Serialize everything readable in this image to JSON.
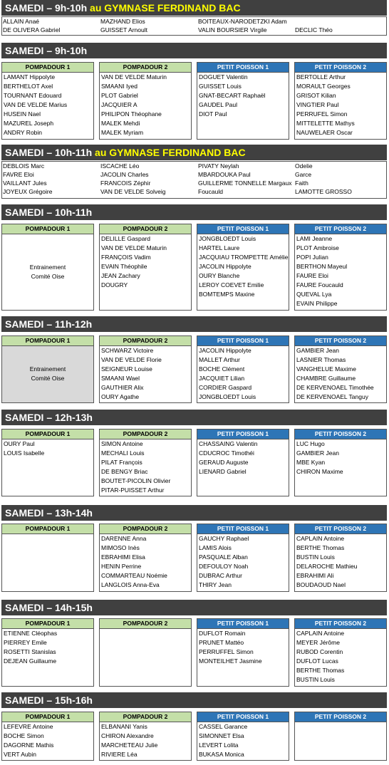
{
  "col_headers": [
    "POMPADOUR 1",
    "POMPADOUR 2",
    "PETIT POISSON 1",
    "PETIT POISSON 2"
  ],
  "list_blocks": [
    {
      "title": "SAMEDI – 9h-10h",
      "location": "au GYMNASE FERDINAND BAC",
      "columns": [
        [
          "ALLAIN Anaé",
          "DE OLIVERA Gabriel"
        ],
        [
          "MAZHAND Elios",
          "GUISSET Arnoult"
        ],
        [
          "BOITEAUX-NARODETZKI Adam",
          "VALIN BOURSIER Virgile"
        ],
        [
          "",
          "DECLIC Théo"
        ]
      ]
    },
    {
      "title": "SAMEDI – 10h-11h",
      "location": "au GYMNASE FERDINAND BAC",
      "columns": [
        [
          "DEBLOIS Marc",
          "FAVRE Eloi",
          "VAILLANT Jules",
          "JOYEUX Grégoire"
        ],
        [
          "ISCACHE Léo",
          "JACOLIN Charles",
          "FRANCOIS Zéphir",
          "VAN DE VELDE Solveig"
        ],
        [
          "PIVATY Neylah",
          "MBARDOUKA Paul",
          "GUILLERME TONNELLE Margaux",
          "Foucauld"
        ],
        [
          "Odelie",
          "Garce",
          "Faith",
          "LAMOTTE      GROSSO"
        ]
      ]
    }
  ],
  "sessions": [
    {
      "title": "SAMEDI – 9h-10h",
      "columns": [
        {
          "names": [
            "LAMANT Hippolyte",
            "BERTHELOT Axel",
            "TOURNANT Edouard",
            "VAN DE VELDE Marius",
            "HUSEIN Nael",
            "MAZUREL Joseph",
            "ANDRY Robin"
          ]
        },
        {
          "names": [
            "VAN DE VELDE Maturin",
            "SMAANI Iyed",
            "PLOT Gabriel",
            "JACQUIER A",
            "PHILIPON Théophane",
            "MALEK Mehdi",
            "MALEK Myriam"
          ]
        },
        {
          "names": [
            "DOGUET Valentin",
            "GUISSET Louis",
            "GNAT-BECART Raphaël",
            "GAUDEL Paul",
            "DIOT Paul"
          ]
        },
        {
          "names": [
            "BERTOLLE Arthur",
            "MORAULT Georges",
            "GRISOT Kilian",
            "VINGTIER Paul",
            "PERRUFEL Simon",
            "MITTELETTE Mathys",
            "NAUWELAER Oscar"
          ]
        }
      ]
    },
    {
      "title": "SAMEDI – 10h-11h",
      "columns": [
        {
          "names": [],
          "note": [
            "Entrainement",
            "Comité Oise"
          ]
        },
        {
          "names": [
            "DELILLE Gaspard",
            "VAN DE VELDE Maturin",
            "FRANÇOIS Vadim",
            "EVAIN Théophile",
            "JEAN Zachary",
            "DOUGRY"
          ]
        },
        {
          "names": [
            "JONGBLOEDT Louis",
            "HARTEL Laure",
            "JACQUIAU TROMPETTE Amélie",
            "JACOLIN Hippolyte",
            "OURY Blanche",
            "LEROY COEVET Emilie",
            "BOMTEMPS Maxine"
          ]
        },
        {
          "names": [
            "LAMI Jeanne",
            "PLOT Ambroise",
            "POPI Julian",
            "BERTHON Mayeul",
            "FAURE Eloi",
            "FAURE Foucauld",
            "QUEVAL Lya",
            "EVAIN Philippe"
          ]
        }
      ]
    },
    {
      "title": "SAMEDI – 11h-12h",
      "columns": [
        {
          "names": [],
          "note": [
            "Entrainement",
            "Comité Oise"
          ],
          "gray": true
        },
        {
          "names": [
            "SCHWARZ Victoire",
            "VAN DE VELDE Florie",
            "SEIGNEUR Louise",
            "SMAANI Wael",
            "GAUTHIER Alix",
            "OURY Agathe"
          ]
        },
        {
          "names": [
            "JACOLIN Hippolyte",
            "MALLET Arthur",
            "BOCHE Clément",
            "JACQUIET Lilian",
            "CORDIER Gaspard",
            "JONGBLOEDT Louis"
          ]
        },
        {
          "names": [
            "GAMBIER Jean",
            "LASNIER Thomas",
            "VANGHELUE Maxime",
            "CHAMBRE Guillaume",
            "DE KERVENOAEL Timothée",
            "DE KERVENOAEL Tanguy"
          ]
        }
      ]
    },
    {
      "title": "SAMEDI – 12h-13h",
      "columns": [
        {
          "names": [
            "OURY Paul",
            "LOUIS Isabelle"
          ]
        },
        {
          "names": [
            "SIMON Antoine",
            "MECHALI Louis",
            "PILAT François",
            "DE BENGY Briac",
            "BOUTET-PICOLIN Olivier",
            "PITAR-PUISSET Arthur"
          ]
        },
        {
          "names": [
            "CHASSAING Valentin",
            "CDUCROC Timothéi",
            "GERAUD Auguste",
            "LIENARD Gabriel"
          ]
        },
        {
          "names": [
            "LUC Hugo",
            "GAMBIER Jean",
            "MBE Kyan",
            "CHIRON Maxime"
          ]
        }
      ]
    },
    {
      "title": "SAMEDI – 13h-14h",
      "columns": [
        {
          "names": []
        },
        {
          "names": [
            "DARENNE Anna",
            "MIMOSO Inès",
            "EBRAHIMI Elisa",
            "HENIN Perrine",
            "COMMARTEAU Noémie",
            "LANGLOIS Anna-Eva"
          ]
        },
        {
          "names": [
            "GAUCHY Raphael",
            "LAMIS Alois",
            "PASQUALE Alban",
            "DEFOULOY Noah",
            "DUBRAC Arthur",
            "THIRY Jean"
          ]
        },
        {
          "names": [
            "CAPLAIN Antoine",
            "BERTHE Thomas",
            "BUSTIN Louis",
            "DELAROCHE Mathieu",
            "EBRAHIMI Ali",
            "BOUDAOUD Nael"
          ]
        }
      ]
    },
    {
      "title": "SAMEDI – 14h-15h",
      "columns": [
        {
          "names": [
            "ETIENNE Cléophas",
            "PIERREY Emile",
            "ROSETTI Stanislas",
            "DEJEAN Guillaume"
          ]
        },
        {
          "names": []
        },
        {
          "names": [
            "DUFLOT Romain",
            "PRUNET Mattéo",
            "PERRUFFEL Simon",
            "MONTEILHET Jasmine"
          ]
        },
        {
          "names": [
            "CAPLAIN Antoine",
            "MEYER Jérôme",
            "RUBOD Corentin",
            "DUFLOT Lucas",
            "BERTHE Thomas",
            "BUSTIN Louis"
          ]
        }
      ]
    },
    {
      "title": "SAMEDI – 15h-16h",
      "columns": [
        {
          "names": [
            "LEFEVRE Antoine",
            "BOCHE Simon",
            "DAGORNE Mathis",
            "VERT Aubin"
          ]
        },
        {
          "names": [
            "ELBANANI Yanis",
            "CHIRON Alexandre",
            "MARCHETEAU Julie",
            "RIVIERE Léa"
          ]
        },
        {
          "names": [
            "CASSEL Garance",
            "SIMONNET Elsa",
            "LEVERT Lolita",
            "BUKASA Monica"
          ]
        },
        {
          "names": []
        }
      ]
    }
  ]
}
